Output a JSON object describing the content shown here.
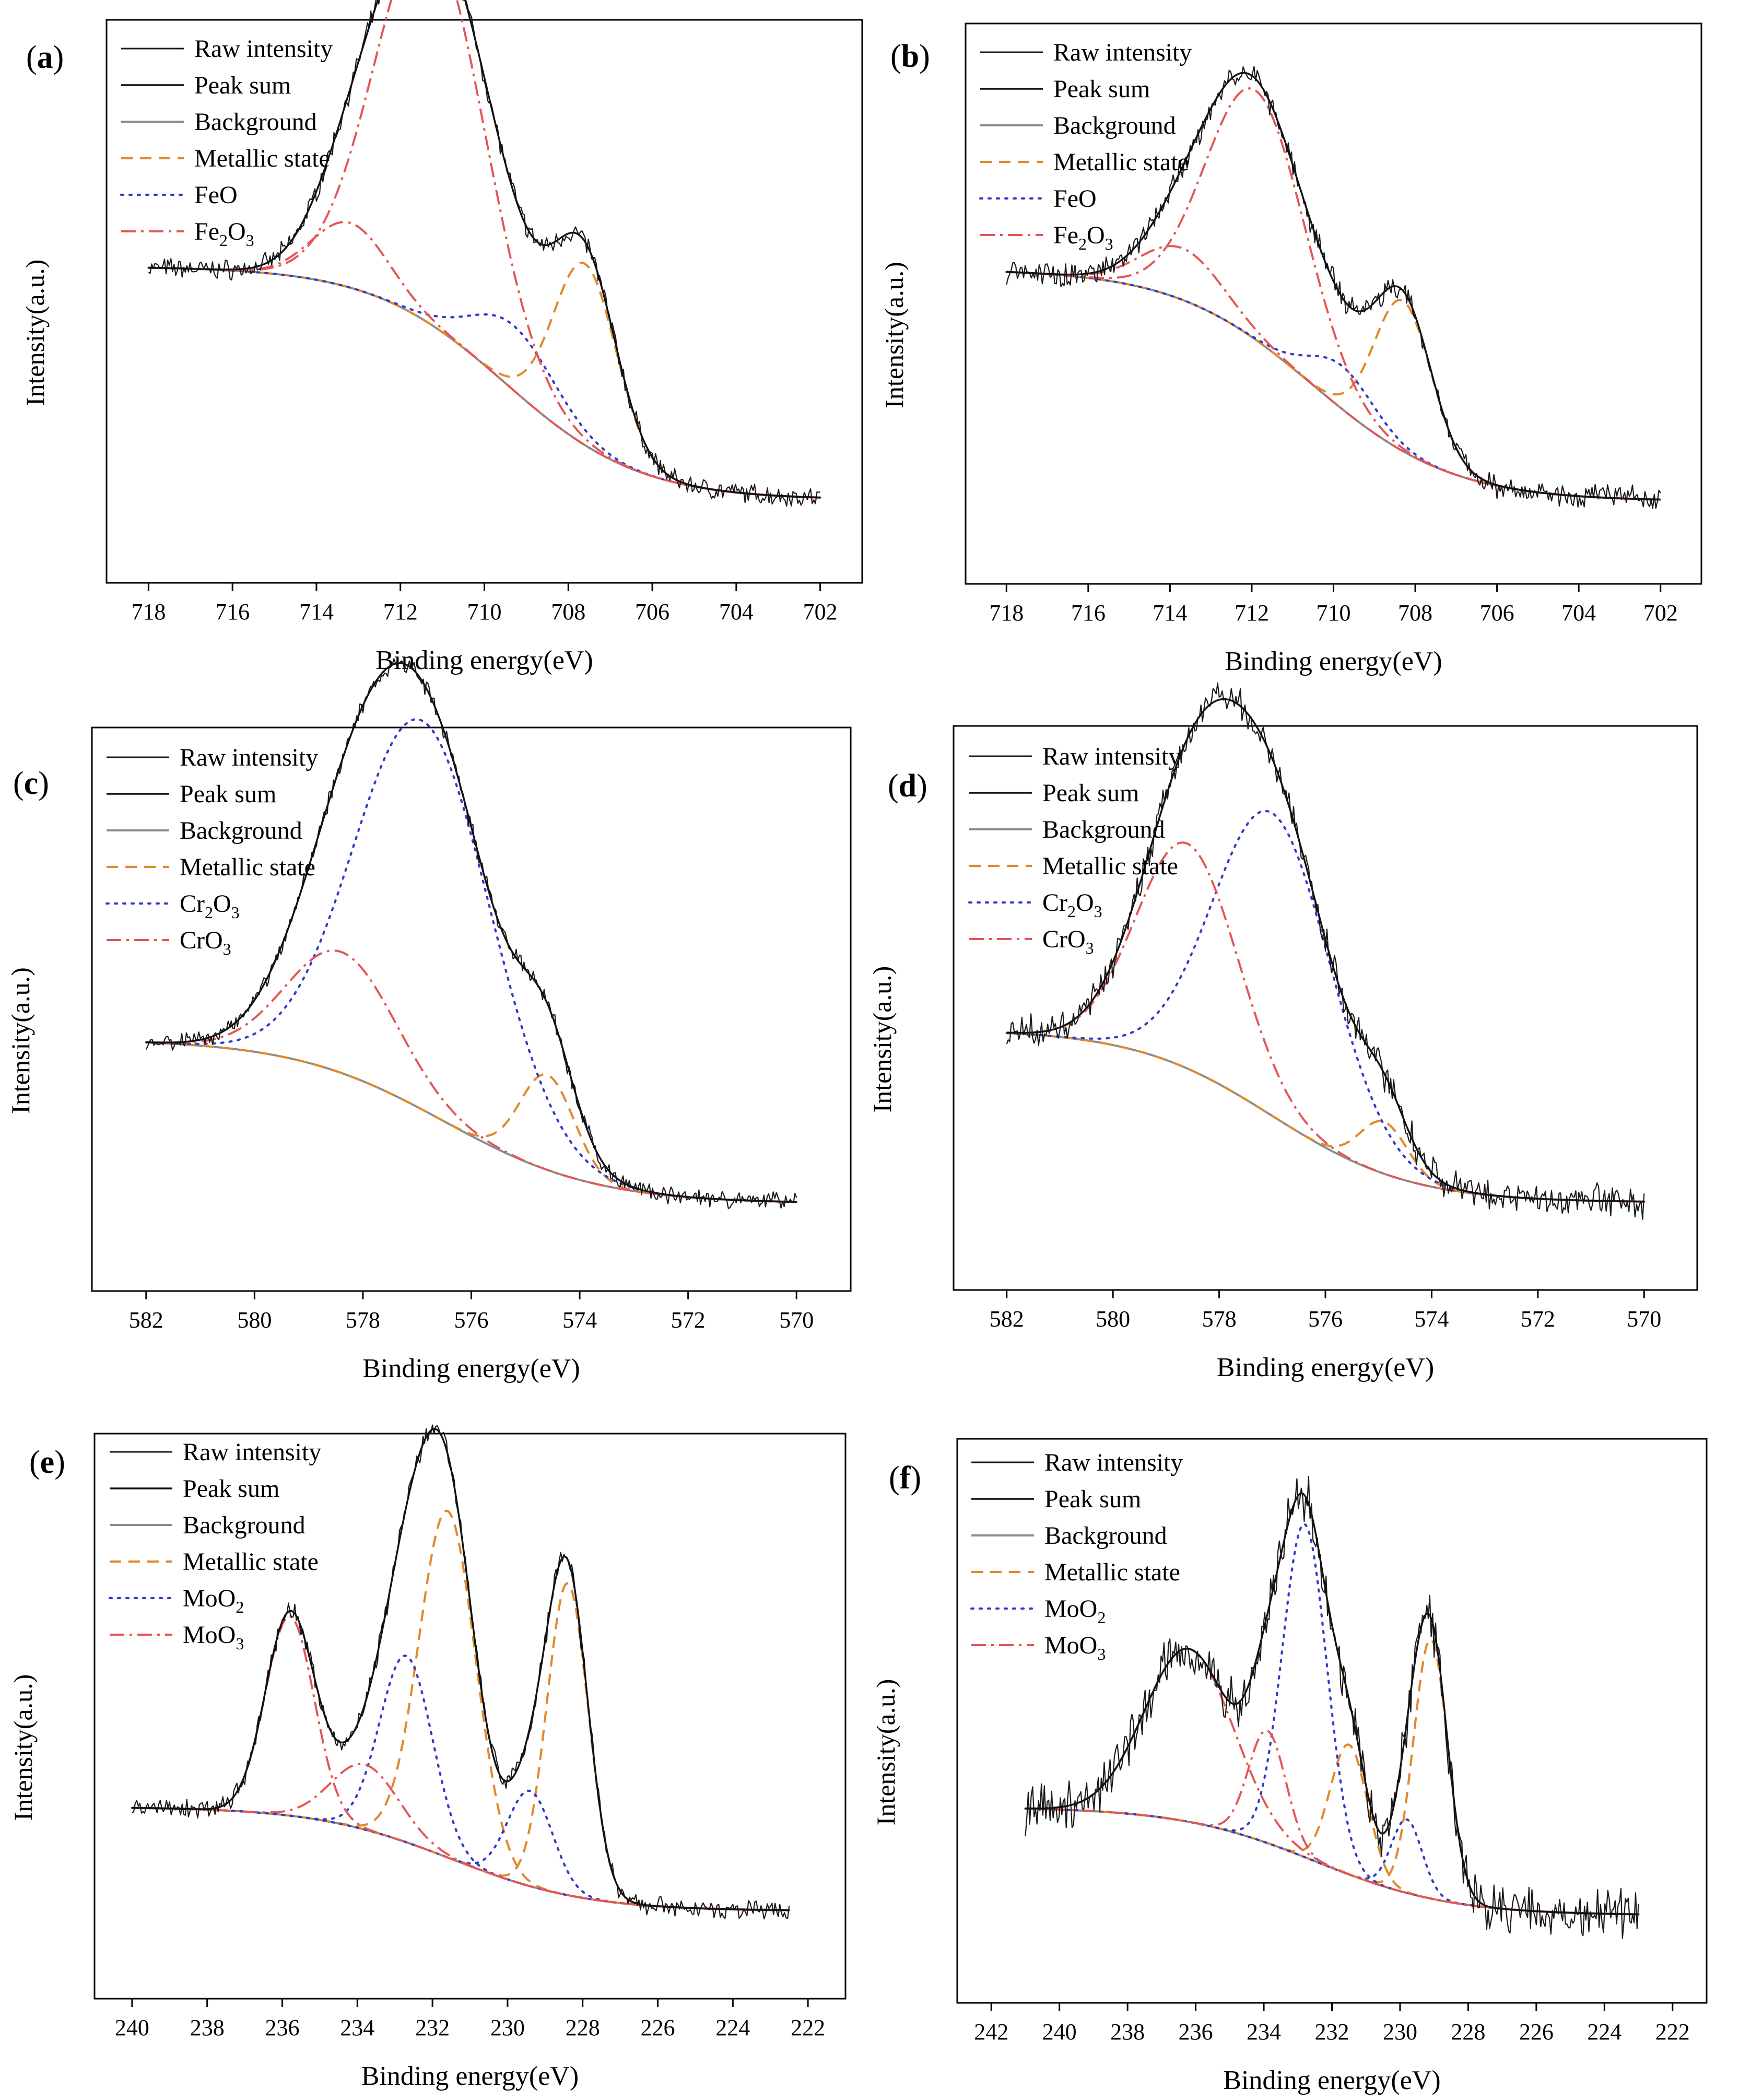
{
  "figure": {
    "axis_label_sub": "2",
    "axis_label_sub3": "3"
  },
  "chart_data": [
    {
      "panel": "(a)",
      "type": "line",
      "xlabel": "Binding energy(eV)",
      "ylabel": "Intensity(a.u.)",
      "xlim": [
        719,
        701
      ],
      "xticks": [
        718,
        716,
        714,
        712,
        710,
        708,
        706,
        704,
        702
      ],
      "ylim": [
        0,
        1.2
      ],
      "legend_position": "top-left",
      "legend": [
        {
          "label": "Raw intensity",
          "style": "raw"
        },
        {
          "label": "Peak sum",
          "style": "sum"
        },
        {
          "label": "Background",
          "style": "bg"
        },
        {
          "label": "Metallic state",
          "style": "metal"
        },
        {
          "label": "FeO",
          "style": "ox1"
        },
        {
          "label": "Fe",
          "sub": "2",
          "mid": "O",
          "sub2": "3",
          "style": "ox2"
        }
      ],
      "x_range": [
        718,
        702
      ],
      "noise": 0.018,
      "background": {
        "y_high": 0.55,
        "y_low": 0.01,
        "x_left": 715,
        "x_right": 705.5,
        "center": 709.5,
        "width": 1.6
      },
      "peaks": [
        {
          "role": "metal",
          "center": 707.6,
          "height": 0.42,
          "width": 0.75
        },
        {
          "role": "ox1",
          "center": 709.3,
          "height": 0.15,
          "width": 1.0
        },
        {
          "role": "ox2",
          "center": 711.3,
          "height": 0.9,
          "width": 1.3
        },
        {
          "role": "ox2",
          "center": 713.2,
          "height": 0.15,
          "width": 0.9
        }
      ]
    },
    {
      "panel": "(b)",
      "type": "line",
      "xlabel": "Binding energy(eV)",
      "ylabel": "Intensity(a.u.)",
      "xlim": [
        719,
        701
      ],
      "xticks": [
        718,
        716,
        714,
        712,
        710,
        708,
        706,
        704,
        702
      ],
      "ylim": [
        0,
        1.2
      ],
      "legend_position": "top-left",
      "legend": [
        {
          "label": "Raw intensity",
          "style": "raw"
        },
        {
          "label": "Peak sum",
          "style": "sum"
        },
        {
          "label": "Background",
          "style": "bg"
        },
        {
          "label": "Metallic state",
          "style": "metal"
        },
        {
          "label": "FeO",
          "style": "ox1"
        },
        {
          "label": "Fe",
          "sub": "2",
          "mid": "O",
          "sub2": "3",
          "style": "ox2"
        }
      ],
      "x_range": [
        718,
        702
      ],
      "noise": 0.022,
      "background": {
        "y_high": 0.55,
        "y_low": 0.01,
        "x_left": 715,
        "x_right": 706.5,
        "center": 710.5,
        "width": 1.7
      },
      "peaks": [
        {
          "role": "metal",
          "center": 708.3,
          "height": 0.35,
          "width": 0.7
        },
        {
          "role": "ox1",
          "center": 709.8,
          "height": 0.1,
          "width": 0.8
        },
        {
          "role": "ox2",
          "center": 711.9,
          "height": 0.58,
          "width": 1.2
        },
        {
          "role": "ox2",
          "center": 713.7,
          "height": 0.12,
          "width": 1.0
        }
      ]
    },
    {
      "panel": "(c)",
      "type": "line",
      "xlabel": "Binding energy(eV)",
      "ylabel": "Intensity(a.u.)",
      "xlim": [
        583,
        569
      ],
      "xticks": [
        582,
        580,
        578,
        576,
        574,
        572,
        570
      ],
      "ylim": [
        0,
        1.2
      ],
      "legend_position": "top-left",
      "legend": [
        {
          "label": "Raw intensity",
          "style": "raw"
        },
        {
          "label": "Peak sum",
          "style": "sum"
        },
        {
          "label": "Background",
          "style": "bg"
        },
        {
          "label": "Metallic state",
          "style": "metal"
        },
        {
          "label": "Cr",
          "sub": "2",
          "mid": "O",
          "sub2": "3",
          "style": "ox1"
        },
        {
          "label": "CrO",
          "sub": "3",
          "style": "ox2"
        }
      ],
      "x_range": [
        582,
        570
      ],
      "noise": 0.015,
      "background": {
        "y_high": 0.4,
        "y_low": 0.02,
        "x_left": 580,
        "x_right": 573.5,
        "center": 576.5,
        "width": 1.4
      },
      "peaks": [
        {
          "role": "metal",
          "center": 574.6,
          "height": 0.22,
          "width": 0.5
        },
        {
          "role": "ox1",
          "center": 576.9,
          "height": 0.9,
          "width": 1.25
        },
        {
          "role": "ox2",
          "center": 578.4,
          "height": 0.28,
          "width": 1.0
        }
      ]
    },
    {
      "panel": "(d)",
      "type": "line",
      "xlabel": "Binding energy(eV)",
      "ylabel": "Intensity(a.u.)",
      "xlim": [
        583,
        569
      ],
      "xticks": [
        582,
        580,
        578,
        576,
        574,
        572,
        570
      ],
      "ylim": [
        0,
        1.2
      ],
      "legend_position": "top-left",
      "legend": [
        {
          "label": "Raw intensity",
          "style": "raw"
        },
        {
          "label": "Peak sum",
          "style": "sum"
        },
        {
          "label": "Background",
          "style": "bg"
        },
        {
          "label": "Metallic state",
          "style": "metal"
        },
        {
          "label": "Cr",
          "sub": "2",
          "mid": "O",
          "sub2": "3",
          "style": "ox1"
        },
        {
          "label": "CrO",
          "sub": "3",
          "style": "ox2"
        }
      ],
      "x_range": [
        582,
        570
      ],
      "noise": 0.03,
      "background": {
        "y_high": 0.42,
        "y_low": 0.02,
        "x_left": 580,
        "x_right": 574.5,
        "center": 577.0,
        "width": 1.3
      },
      "peaks": [
        {
          "role": "metal",
          "center": 574.9,
          "height": 0.12,
          "width": 0.45
        },
        {
          "role": "ox1",
          "center": 577.0,
          "height": 0.7,
          "width": 1.1
        },
        {
          "role": "ox2",
          "center": 578.6,
          "height": 0.52,
          "width": 0.95
        }
      ]
    },
    {
      "panel": "(e)",
      "type": "line",
      "xlabel": "Binding energy(eV)",
      "ylabel": "Intensity(a.u.)",
      "xlim": [
        241,
        221
      ],
      "xticks": [
        240,
        238,
        236,
        234,
        232,
        230,
        228,
        226,
        224,
        222
      ],
      "ylim": [
        0,
        1.2
      ],
      "legend_position": "top-left",
      "legend": [
        {
          "label": "Raw intensity",
          "style": "raw"
        },
        {
          "label": "Peak sum",
          "style": "sum"
        },
        {
          "label": "Background",
          "style": "bg"
        },
        {
          "label": "Metallic state",
          "style": "metal"
        },
        {
          "label": "MoO",
          "sub": "2",
          "style": "ox1"
        },
        {
          "label": "MoO",
          "sub": "3",
          "style": "ox2"
        }
      ],
      "x_range": [
        240,
        222.5
      ],
      "noise": 0.018,
      "background": {
        "y_high": 0.26,
        "y_low": 0.02,
        "x_left": 236,
        "x_right": 227.5,
        "center": 231.5,
        "width": 1.8
      },
      "peaks": [
        {
          "role": "metal",
          "center": 228.4,
          "height": 0.72,
          "width": 0.55
        },
        {
          "role": "metal",
          "center": 231.6,
          "height": 0.8,
          "width": 0.75
        },
        {
          "role": "ox1",
          "center": 229.4,
          "height": 0.22,
          "width": 0.6
        },
        {
          "role": "ox1",
          "center": 232.7,
          "height": 0.43,
          "width": 0.7
        },
        {
          "role": "ox2",
          "center": 233.8,
          "height": 0.15,
          "width": 0.9
        },
        {
          "role": "ox2",
          "center": 235.8,
          "height": 0.46,
          "width": 0.65
        }
      ]
    },
    {
      "panel": "(f)",
      "type": "line",
      "xlabel": "Binding energy(eV)",
      "ylabel": "Intensity(a.u.)",
      "xlim": [
        243,
        221
      ],
      "xticks": [
        242,
        240,
        238,
        236,
        234,
        232,
        230,
        228,
        226,
        224,
        222
      ],
      "ylim": [
        0,
        1.2
      ],
      "legend_position": "top-left",
      "legend": [
        {
          "label": "Raw intensity",
          "style": "raw"
        },
        {
          "label": "Peak sum",
          "style": "sum"
        },
        {
          "label": "Background",
          "style": "bg"
        },
        {
          "label": "Metallic state",
          "style": "metal"
        },
        {
          "label": "MoO",
          "sub": "2",
          "style": "ox1"
        },
        {
          "label": "MoO",
          "sub": "3",
          "style": "ox2"
        }
      ],
      "x_range": [
        241,
        223
      ],
      "noise": 0.045,
      "background": {
        "y_high": 0.27,
        "y_low": 0.02,
        "x_left": 237,
        "x_right": 228.5,
        "center": 232.5,
        "width": 2.0
      },
      "peaks": [
        {
          "role": "metal",
          "center": 229.1,
          "height": 0.6,
          "width": 0.5
        },
        {
          "role": "metal",
          "center": 231.5,
          "height": 0.3,
          "width": 0.55
        },
        {
          "role": "ox1",
          "center": 229.8,
          "height": 0.17,
          "width": 0.45
        },
        {
          "role": "ox1",
          "center": 232.8,
          "height": 0.77,
          "width": 0.65
        },
        {
          "role": "ox2",
          "center": 233.9,
          "height": 0.26,
          "width": 0.55
        },
        {
          "role": "ox2",
          "center": 236.2,
          "height": 0.4,
          "width": 1.3
        }
      ]
    }
  ],
  "styles": {
    "raw": {
      "color": "#1a1a1a",
      "width": 2.2,
      "dash": ""
    },
    "sum": {
      "color": "#111111",
      "width": 3.4,
      "dash": ""
    },
    "bg": {
      "color": "#8c8c8c",
      "width": 4.0,
      "dash": ""
    },
    "metal": {
      "color": "#e08a2c",
      "width": 4.2,
      "dash": "22 14"
    },
    "ox1": {
      "color": "#2f3cc9",
      "width": 4.2,
      "dash": "4 12"
    },
    "ox2": {
      "color": "#e45656",
      "width": 4.0,
      "dash": "28 10 5 10"
    }
  }
}
